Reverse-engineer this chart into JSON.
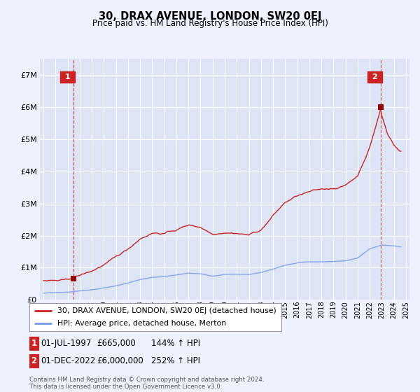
{
  "title": "30, DRAX AVENUE, LONDON, SW20 0EJ",
  "subtitle": "Price paid vs. HM Land Registry's House Price Index (HPI)",
  "ylim": [
    0,
    7500000
  ],
  "yticks": [
    0,
    1000000,
    2000000,
    3000000,
    4000000,
    5000000,
    6000000,
    7000000
  ],
  "ytick_labels": [
    "£0",
    "£1M",
    "£2M",
    "£3M",
    "£4M",
    "£5M",
    "£6M",
    "£7M"
  ],
  "xlim_start": 1994.7,
  "xlim_end": 2025.3,
  "background_color": "#eef2ff",
  "plot_bg_color": "#dde4f5",
  "grid_color": "#ffffff",
  "hpi_color": "#7799ee",
  "price_color": "#cc2222",
  "marker_color": "#990000",
  "annotation_box_color": "#cc2222",
  "dashed_line_color": "#cc2222",
  "legend_label_price": "30, DRAX AVENUE, LONDON, SW20 0EJ (detached house)",
  "legend_label_hpi": "HPI: Average price, detached house, Merton",
  "sale1_date": 1997.5,
  "sale1_price": 665000,
  "sale2_date": 2022.917,
  "sale2_price": 6000000,
  "sale1_text": "01-JUL-1997",
  "sale1_price_text": "£665,000",
  "sale1_hpi_text": "144% ↑ HPI",
  "sale2_text": "01-DEC-2022",
  "sale2_price_text": "£6,000,000",
  "sale2_hpi_text": "252% ↑ HPI",
  "footer": "Contains HM Land Registry data © Crown copyright and database right 2024.\nThis data is licensed under the Open Government Licence v3.0."
}
